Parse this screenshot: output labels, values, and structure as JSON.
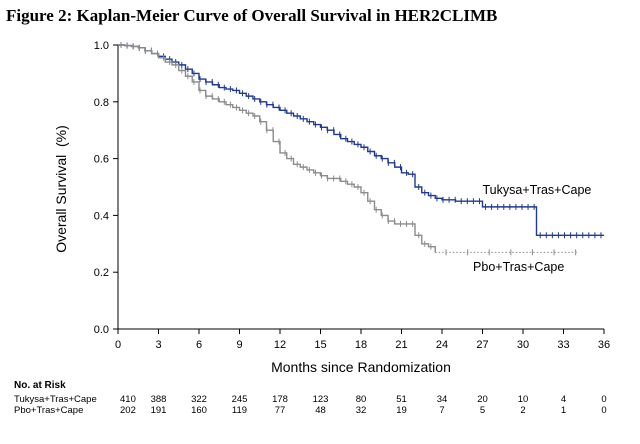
{
  "title": "Figure 2: Kaplan-Meier Curve of Overall Survival in HER2CLIMB",
  "chart_data": {
    "type": "line",
    "xlabel": "Months since Randomization",
    "ylabel": "Overall Survival  (%)",
    "xlim": [
      0,
      36
    ],
    "ylim": [
      0.0,
      1.0
    ],
    "x_ticks": [
      "0",
      "3",
      "6",
      "9",
      "12",
      "15",
      "18",
      "21",
      "24",
      "27",
      "30",
      "33",
      "36"
    ],
    "y_ticks": [
      "0.0",
      "0.2",
      "0.4",
      "0.6",
      "0.8",
      "1.0"
    ],
    "grid": false,
    "series": [
      {
        "name": "Tukysa+Tras+Cape",
        "color": "#1f3a93",
        "style": "solid",
        "x": [
          0,
          0.5,
          1,
          1.5,
          2,
          2.5,
          3,
          3.5,
          4,
          4.5,
          5,
          5.5,
          6,
          6.5,
          7,
          7.5,
          8,
          8.5,
          9,
          9.5,
          10,
          10.5,
          11,
          11.5,
          12,
          12.5,
          13,
          13.5,
          14,
          14.5,
          15,
          15.5,
          16,
          16.5,
          17,
          17.5,
          18,
          18.5,
          19,
          19.5,
          20,
          20.5,
          21,
          21.5,
          22,
          22.5,
          23,
          23.5,
          24,
          25,
          26,
          27,
          28,
          29,
          30,
          30.5,
          31,
          32,
          33,
          34,
          35,
          36
        ],
        "y": [
          1.0,
          0.998,
          0.995,
          0.99,
          0.98,
          0.97,
          0.96,
          0.95,
          0.94,
          0.93,
          0.915,
          0.9,
          0.88,
          0.87,
          0.86,
          0.85,
          0.845,
          0.84,
          0.83,
          0.82,
          0.81,
          0.8,
          0.79,
          0.78,
          0.77,
          0.76,
          0.75,
          0.74,
          0.73,
          0.72,
          0.71,
          0.7,
          0.685,
          0.67,
          0.66,
          0.65,
          0.64,
          0.625,
          0.61,
          0.6,
          0.585,
          0.57,
          0.55,
          0.545,
          0.5,
          0.48,
          0.47,
          0.46,
          0.455,
          0.45,
          0.45,
          0.43,
          0.43,
          0.43,
          0.43,
          0.43,
          0.33,
          0.33,
          0.33,
          0.33,
          0.33,
          0.33
        ]
      },
      {
        "name": "Pbo+Tras+Cape",
        "color": "#8c8c8c",
        "style": "solid",
        "x": [
          0,
          0.5,
          1,
          1.5,
          2,
          2.5,
          3,
          3.5,
          4,
          4.5,
          5,
          5.5,
          6,
          6.5,
          7,
          7.5,
          8,
          8.5,
          9,
          9.5,
          10,
          10.5,
          11,
          11.5,
          12,
          12.5,
          13,
          13.5,
          14,
          14.5,
          15,
          15.5,
          16,
          16.5,
          17,
          17.5,
          18,
          18.5,
          19,
          19.5,
          20,
          20.5,
          21,
          21.5,
          22,
          22.5,
          23,
          23.5
        ],
        "y": [
          1.0,
          0.998,
          0.995,
          0.99,
          0.98,
          0.97,
          0.955,
          0.94,
          0.93,
          0.91,
          0.89,
          0.87,
          0.84,
          0.82,
          0.81,
          0.8,
          0.79,
          0.78,
          0.77,
          0.76,
          0.75,
          0.73,
          0.7,
          0.66,
          0.62,
          0.6,
          0.58,
          0.57,
          0.56,
          0.55,
          0.54,
          0.53,
          0.53,
          0.52,
          0.51,
          0.5,
          0.48,
          0.45,
          0.42,
          0.4,
          0.38,
          0.37,
          0.37,
          0.37,
          0.33,
          0.3,
          0.29,
          0.27
        ]
      },
      {
        "name": "Pbo+Tras+Cape (tail)",
        "color": "#8c8c8c",
        "style": "dotted",
        "x": [
          23.5,
          34
        ],
        "y": [
          0.27,
          0.27
        ]
      }
    ],
    "series_labels": [
      {
        "text": "Tukysa+Tras+Cape",
        "anchor_x": 27,
        "anchor_y": 0.475
      },
      {
        "text": "Pbo+Tras+Cape",
        "anchor_x": 26.3,
        "anchor_y": 0.205
      }
    ],
    "risk_table": {
      "header": "No. at Risk",
      "rows": [
        {
          "label": "Tukysa+Tras+Cape",
          "values": [
            "410",
            "388",
            "322",
            "245",
            "178",
            "123",
            "80",
            "51",
            "34",
            "20",
            "10",
            "4",
            "0"
          ]
        },
        {
          "label": "Pbo+Tras+Cape",
          "values": [
            "202",
            "191",
            "160",
            "119",
            "77",
            "48",
            "32",
            "19",
            "7",
            "5",
            "2",
            "1",
            "0"
          ]
        }
      ]
    }
  }
}
